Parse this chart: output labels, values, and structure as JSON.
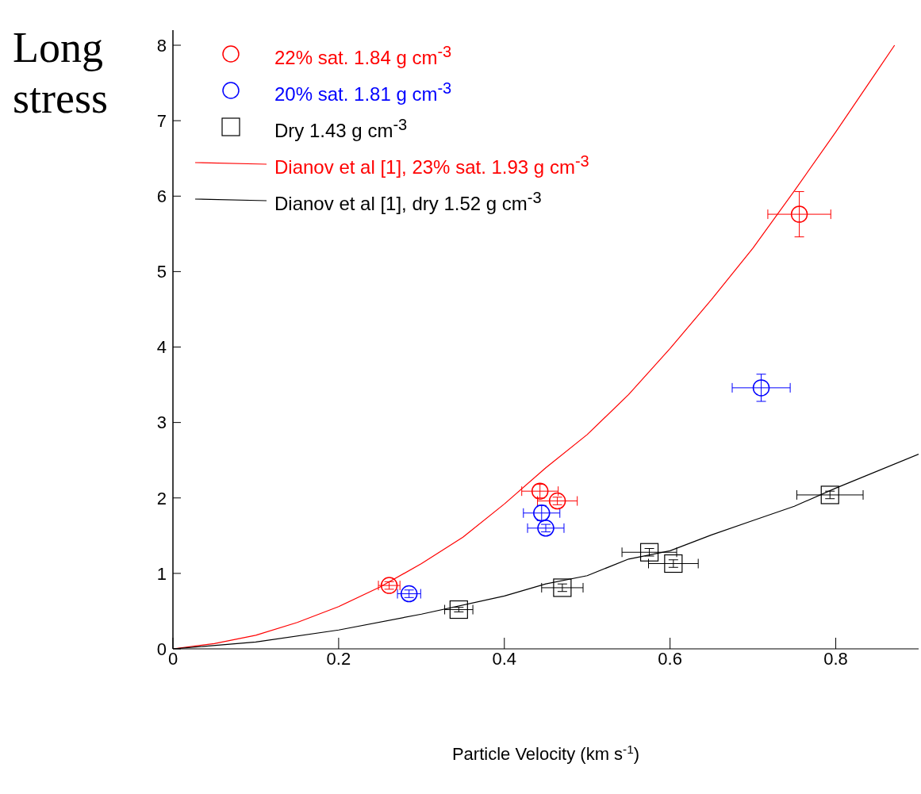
{
  "chart_data": {
    "type": "scatter",
    "ylabel": "Long stress",
    "xlabel": "Particle Velocity (km s$^{-1}$)",
    "xlim": [
      0,
      0.9
    ],
    "ylim": [
      0,
      8.2
    ],
    "xticks": [
      0,
      0.2,
      0.4,
      0.6,
      0.8
    ],
    "yticks": [
      0,
      1,
      2,
      3,
      4,
      5,
      6,
      7,
      8
    ],
    "legend": "top left",
    "grid": false,
    "series": [
      {
        "name": "22% sat. 1.84 g cm$^{-3}$",
        "color": "#ff0000",
        "marker": "circle",
        "x": [
          0.261,
          0.443,
          0.464,
          0.756
        ],
        "values": [
          0.84,
          2.09,
          1.96,
          5.76
        ],
        "xerrors": [
          0.013,
          0.022,
          0.024,
          0.038
        ],
        "errors": [
          0.05,
          0.09,
          0.05,
          0.3
        ]
      },
      {
        "name": "20% sat. 1.81 g cm$^{-3}$",
        "color": "#0000ff",
        "marker": "circle",
        "x": [
          0.285,
          0.445,
          0.45,
          0.71
        ],
        "values": [
          0.73,
          1.8,
          1.6,
          3.46
        ],
        "xerrors": [
          0.014,
          0.022,
          0.022,
          0.035
        ],
        "errors": [
          0.05,
          0.1,
          0.05,
          0.18
        ]
      },
      {
        "name": "Dry 1.43 g cm$^{-3}$",
        "color": "#000000",
        "marker": "square",
        "x": [
          0.345,
          0.47,
          0.575,
          0.604,
          0.793
        ],
        "values": [
          0.52,
          0.81,
          1.28,
          1.13,
          2.04
        ],
        "xerrors": [
          0.017,
          0.025,
          0.033,
          0.03,
          0.04
        ],
        "errors": [
          0.03,
          0.05,
          0.05,
          0.05,
          0.05
        ]
      },
      {
        "name": "Dianov et al [1], 23% sat. 1.93 g cm$^{-3}$",
        "type": "line",
        "color": "#ff0000",
        "marker": "none",
        "x": [
          0,
          0.05,
          0.1,
          0.15,
          0.2,
          0.25,
          0.3,
          0.35,
          0.4,
          0.45,
          0.5,
          0.55,
          0.6,
          0.65,
          0.7,
          0.75,
          0.8,
          0.85,
          0.871
        ],
        "values": [
          0,
          0.07,
          0.18,
          0.35,
          0.56,
          0.82,
          1.13,
          1.48,
          1.92,
          2.4,
          2.84,
          3.37,
          3.98,
          4.63,
          5.31,
          6.07,
          6.85,
          7.66,
          8.0
        ]
      },
      {
        "name": "Dianov et al [1], dry 1.52 g cm$^{-3}$",
        "type": "line",
        "color": "#000000",
        "marker": "none",
        "x": [
          0,
          0.1,
          0.2,
          0.3,
          0.4,
          0.45,
          0.5,
          0.55,
          0.6,
          0.65,
          0.7,
          0.75,
          0.8,
          0.9
        ],
        "values": [
          0,
          0.09,
          0.25,
          0.46,
          0.7,
          0.86,
          0.97,
          1.19,
          1.3,
          1.51,
          1.7,
          1.89,
          2.13,
          2.58
        ]
      }
    ]
  }
}
